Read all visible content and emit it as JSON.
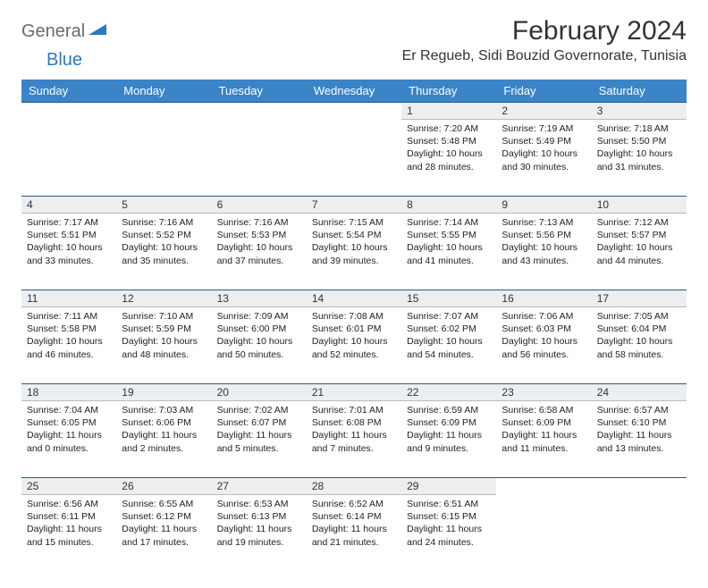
{
  "logo": {
    "word1": "General",
    "word2": "Blue"
  },
  "title": "February 2024",
  "location": "Er Regueb, Sidi Bouzid Governorate, Tunisia",
  "colors": {
    "header_bg": "#3a84c7",
    "header_text": "#ffffff",
    "daynum_bg": "#eceeef",
    "row_border": "#2b5a88",
    "logo_gray": "#6b6b6b",
    "logo_blue": "#2f78c0"
  },
  "weekdays": [
    "Sunday",
    "Monday",
    "Tuesday",
    "Wednesday",
    "Thursday",
    "Friday",
    "Saturday"
  ],
  "weeks": [
    {
      "nums": [
        "",
        "",
        "",
        "",
        "1",
        "2",
        "3"
      ],
      "cells": [
        null,
        null,
        null,
        null,
        {
          "sunrise": "Sunrise: 7:20 AM",
          "sunset": "Sunset: 5:48 PM",
          "day1": "Daylight: 10 hours",
          "day2": "and 28 minutes."
        },
        {
          "sunrise": "Sunrise: 7:19 AM",
          "sunset": "Sunset: 5:49 PM",
          "day1": "Daylight: 10 hours",
          "day2": "and 30 minutes."
        },
        {
          "sunrise": "Sunrise: 7:18 AM",
          "sunset": "Sunset: 5:50 PM",
          "day1": "Daylight: 10 hours",
          "day2": "and 31 minutes."
        }
      ]
    },
    {
      "nums": [
        "4",
        "5",
        "6",
        "7",
        "8",
        "9",
        "10"
      ],
      "cells": [
        {
          "sunrise": "Sunrise: 7:17 AM",
          "sunset": "Sunset: 5:51 PM",
          "day1": "Daylight: 10 hours",
          "day2": "and 33 minutes."
        },
        {
          "sunrise": "Sunrise: 7:16 AM",
          "sunset": "Sunset: 5:52 PM",
          "day1": "Daylight: 10 hours",
          "day2": "and 35 minutes."
        },
        {
          "sunrise": "Sunrise: 7:16 AM",
          "sunset": "Sunset: 5:53 PM",
          "day1": "Daylight: 10 hours",
          "day2": "and 37 minutes."
        },
        {
          "sunrise": "Sunrise: 7:15 AM",
          "sunset": "Sunset: 5:54 PM",
          "day1": "Daylight: 10 hours",
          "day2": "and 39 minutes."
        },
        {
          "sunrise": "Sunrise: 7:14 AM",
          "sunset": "Sunset: 5:55 PM",
          "day1": "Daylight: 10 hours",
          "day2": "and 41 minutes."
        },
        {
          "sunrise": "Sunrise: 7:13 AM",
          "sunset": "Sunset: 5:56 PM",
          "day1": "Daylight: 10 hours",
          "day2": "and 43 minutes."
        },
        {
          "sunrise": "Sunrise: 7:12 AM",
          "sunset": "Sunset: 5:57 PM",
          "day1": "Daylight: 10 hours",
          "day2": "and 44 minutes."
        }
      ]
    },
    {
      "nums": [
        "11",
        "12",
        "13",
        "14",
        "15",
        "16",
        "17"
      ],
      "cells": [
        {
          "sunrise": "Sunrise: 7:11 AM",
          "sunset": "Sunset: 5:58 PM",
          "day1": "Daylight: 10 hours",
          "day2": "and 46 minutes."
        },
        {
          "sunrise": "Sunrise: 7:10 AM",
          "sunset": "Sunset: 5:59 PM",
          "day1": "Daylight: 10 hours",
          "day2": "and 48 minutes."
        },
        {
          "sunrise": "Sunrise: 7:09 AM",
          "sunset": "Sunset: 6:00 PM",
          "day1": "Daylight: 10 hours",
          "day2": "and 50 minutes."
        },
        {
          "sunrise": "Sunrise: 7:08 AM",
          "sunset": "Sunset: 6:01 PM",
          "day1": "Daylight: 10 hours",
          "day2": "and 52 minutes."
        },
        {
          "sunrise": "Sunrise: 7:07 AM",
          "sunset": "Sunset: 6:02 PM",
          "day1": "Daylight: 10 hours",
          "day2": "and 54 minutes."
        },
        {
          "sunrise": "Sunrise: 7:06 AM",
          "sunset": "Sunset: 6:03 PM",
          "day1": "Daylight: 10 hours",
          "day2": "and 56 minutes."
        },
        {
          "sunrise": "Sunrise: 7:05 AM",
          "sunset": "Sunset: 6:04 PM",
          "day1": "Daylight: 10 hours",
          "day2": "and 58 minutes."
        }
      ]
    },
    {
      "nums": [
        "18",
        "19",
        "20",
        "21",
        "22",
        "23",
        "24"
      ],
      "cells": [
        {
          "sunrise": "Sunrise: 7:04 AM",
          "sunset": "Sunset: 6:05 PM",
          "day1": "Daylight: 11 hours",
          "day2": "and 0 minutes."
        },
        {
          "sunrise": "Sunrise: 7:03 AM",
          "sunset": "Sunset: 6:06 PM",
          "day1": "Daylight: 11 hours",
          "day2": "and 2 minutes."
        },
        {
          "sunrise": "Sunrise: 7:02 AM",
          "sunset": "Sunset: 6:07 PM",
          "day1": "Daylight: 11 hours",
          "day2": "and 5 minutes."
        },
        {
          "sunrise": "Sunrise: 7:01 AM",
          "sunset": "Sunset: 6:08 PM",
          "day1": "Daylight: 11 hours",
          "day2": "and 7 minutes."
        },
        {
          "sunrise": "Sunrise: 6:59 AM",
          "sunset": "Sunset: 6:09 PM",
          "day1": "Daylight: 11 hours",
          "day2": "and 9 minutes."
        },
        {
          "sunrise": "Sunrise: 6:58 AM",
          "sunset": "Sunset: 6:09 PM",
          "day1": "Daylight: 11 hours",
          "day2": "and 11 minutes."
        },
        {
          "sunrise": "Sunrise: 6:57 AM",
          "sunset": "Sunset: 6:10 PM",
          "day1": "Daylight: 11 hours",
          "day2": "and 13 minutes."
        }
      ]
    },
    {
      "nums": [
        "25",
        "26",
        "27",
        "28",
        "29",
        "",
        ""
      ],
      "cells": [
        {
          "sunrise": "Sunrise: 6:56 AM",
          "sunset": "Sunset: 6:11 PM",
          "day1": "Daylight: 11 hours",
          "day2": "and 15 minutes."
        },
        {
          "sunrise": "Sunrise: 6:55 AM",
          "sunset": "Sunset: 6:12 PM",
          "day1": "Daylight: 11 hours",
          "day2": "and 17 minutes."
        },
        {
          "sunrise": "Sunrise: 6:53 AM",
          "sunset": "Sunset: 6:13 PM",
          "day1": "Daylight: 11 hours",
          "day2": "and 19 minutes."
        },
        {
          "sunrise": "Sunrise: 6:52 AM",
          "sunset": "Sunset: 6:14 PM",
          "day1": "Daylight: 11 hours",
          "day2": "and 21 minutes."
        },
        {
          "sunrise": "Sunrise: 6:51 AM",
          "sunset": "Sunset: 6:15 PM",
          "day1": "Daylight: 11 hours",
          "day2": "and 24 minutes."
        },
        null,
        null
      ]
    }
  ]
}
